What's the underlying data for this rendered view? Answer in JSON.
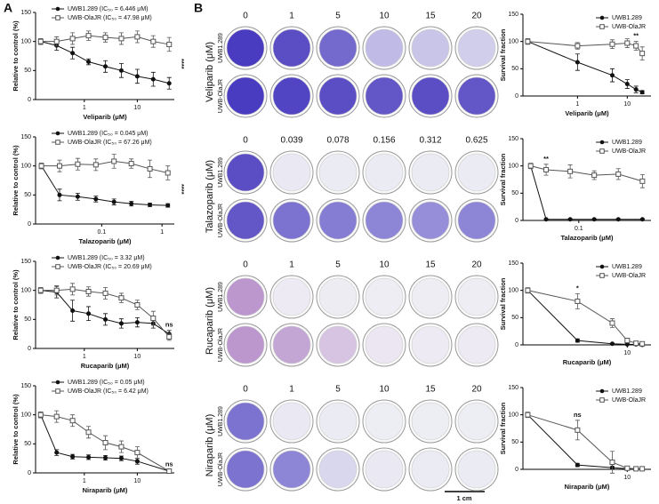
{
  "panel_labels": [
    "A",
    "B"
  ],
  "scale_bar": "1 cm",
  "plates": [
    {
      "drug_label": "Veliparib (μM)",
      "doses": [
        "0",
        "1",
        "5",
        "10",
        "15",
        "20"
      ],
      "rows": [
        "UWB1.289",
        "UWB-OlaJR"
      ]
    },
    {
      "drug_label": "Talazoparib (μM)",
      "doses": [
        "0",
        "0.039",
        "0.078",
        "0.156",
        "0.312",
        "0.625"
      ],
      "rows": [
        "UWB1.289",
        "UWB-OlaJR"
      ]
    },
    {
      "drug_label": "Rucaparib (μM)",
      "doses": [
        "0",
        "1",
        "5",
        "10",
        "15",
        "20"
      ],
      "rows": [
        "UWB1.289",
        "UWB-OlaJR"
      ]
    },
    {
      "drug_label": "Niraparib (μM)",
      "doses": [
        "0",
        "1",
        "5",
        "10",
        "15",
        "20"
      ],
      "rows": [
        "UWB1.289",
        "UWB-OlaJR"
      ]
    }
  ],
  "chart_data": [
    {
      "type": "line",
      "xlabel": "Veliparib (μM)",
      "ylabel": "Relative to control (%)",
      "xlog": true,
      "xlim": [
        0.12,
        50
      ],
      "xticks": [
        1,
        10
      ],
      "ylim": [
        0,
        150
      ],
      "yticks": [
        0,
        50,
        100,
        150
      ],
      "annotation": "****",
      "x": [
        0.15,
        0.3,
        0.6,
        1.2,
        2.5,
        5,
        10,
        20,
        40
      ],
      "series": [
        {
          "name": "UWB1.289 (IC₅₀ = 6.446 μM)",
          "color": "#111111",
          "marker": "circle",
          "values": [
            100,
            93,
            80,
            65,
            57,
            50,
            40,
            35,
            28
          ],
          "errors": [
            5,
            8,
            10,
            5,
            10,
            12,
            12,
            12,
            10
          ]
        },
        {
          "name": "UWB-OlaJR (IC₅₀ = 47.98 μM)",
          "color": "#555555",
          "marker": "square",
          "values": [
            100,
            100,
            105,
            110,
            107,
            105,
            108,
            100,
            95
          ],
          "errors": [
            5,
            8,
            10,
            8,
            8,
            10,
            10,
            10,
            12
          ]
        }
      ]
    },
    {
      "type": "line",
      "xlabel": "Talazoparib (μM)",
      "ylabel": "Relative to control (%)",
      "xlog": true,
      "xlim": [
        0.008,
        1.6
      ],
      "xticks": [
        0.1,
        1
      ],
      "ylim": [
        0,
        150
      ],
      "yticks": [
        0,
        50,
        100,
        150
      ],
      "annotation": "****",
      "x": [
        0.01,
        0.02,
        0.04,
        0.08,
        0.16,
        0.31,
        0.63,
        1.25
      ],
      "series": [
        {
          "name": "UWB1.289 (IC₅₀ = 0.045 μM)",
          "color": "#111111",
          "marker": "circle",
          "values": [
            100,
            50,
            47,
            43,
            38,
            35,
            33,
            32
          ],
          "errors": [
            3,
            10,
            6,
            5,
            5,
            4,
            3,
            3
          ]
        },
        {
          "name": "UWB-OlaJR (IC₅₀ = 67.26 μM)",
          "color": "#555555",
          "marker": "square",
          "values": [
            100,
            100,
            103,
            102,
            108,
            104,
            95,
            88
          ],
          "errors": [
            5,
            10,
            10,
            10,
            12,
            8,
            15,
            12
          ]
        }
      ]
    },
    {
      "type": "line",
      "xlabel": "Rucaparib  (μM)",
      "ylabel": "Relative to control (%)",
      "xlog": true,
      "xlim": [
        0.12,
        50
      ],
      "xticks": [
        1,
        10
      ],
      "ylim": [
        0,
        150
      ],
      "yticks": [
        0,
        50,
        100,
        150
      ],
      "annotation": "ns",
      "x": [
        0.15,
        0.3,
        0.6,
        1.2,
        2.5,
        5,
        10,
        20,
        40
      ],
      "series": [
        {
          "name": "UWB1.289 (IC₅₀ = 3.32 μM)",
          "color": "#111111",
          "marker": "circle",
          "values": [
            100,
            97,
            65,
            60,
            50,
            43,
            45,
            43,
            25
          ],
          "errors": [
            5,
            10,
            18,
            12,
            10,
            8,
            8,
            8,
            6
          ]
        },
        {
          "name": "UWB-OlaJR (IC₅₀ = 20.69 μM)",
          "color": "#555555",
          "marker": "square",
          "values": [
            100,
            100,
            102,
            98,
            95,
            87,
            75,
            52,
            20
          ],
          "errors": [
            5,
            8,
            10,
            8,
            10,
            8,
            8,
            12,
            6
          ]
        }
      ]
    },
    {
      "type": "line",
      "xlabel": "Niraparib (μM)",
      "ylabel": "Relative to control (%)",
      "xlog": true,
      "xlim": [
        0.12,
        50
      ],
      "xticks": [
        1,
        10
      ],
      "ylim": [
        0,
        150
      ],
      "yticks": [
        0,
        50,
        100,
        150
      ],
      "annotation": "ns",
      "x": [
        0.15,
        0.3,
        0.6,
        1.2,
        2.5,
        5,
        10,
        40
      ],
      "series": [
        {
          "name": "UWB1.289 (IC₅₀ = 0.05 μM)",
          "color": "#111111",
          "marker": "circle",
          "values": [
            100,
            35,
            28,
            27,
            26,
            25,
            20,
            3
          ],
          "errors": [
            5,
            5,
            4,
            4,
            4,
            4,
            5,
            2
          ]
        },
        {
          "name": "UWB-OlaJR (IC₅₀ = 6.42 μM)",
          "color": "#555555",
          "marker": "square",
          "values": [
            100,
            97,
            90,
            70,
            52,
            45,
            35,
            3
          ],
          "errors": [
            5,
            10,
            10,
            10,
            12,
            10,
            10,
            2
          ]
        }
      ]
    },
    {
      "type": "line",
      "xlabel": "Veliparib (μM)",
      "ylabel": "Survival fraction",
      "xlog": true,
      "xlim": [
        0.08,
        30
      ],
      "xticks": [
        1,
        10
      ],
      "ylim": [
        0,
        150
      ],
      "yticks": [
        0,
        50,
        100,
        150
      ],
      "annotation": "**",
      "x": [
        0.1,
        1,
        5,
        10,
        15,
        20
      ],
      "series": [
        {
          "name": "UWB1.289",
          "color": "#111111",
          "marker": "circle",
          "values": [
            100,
            62,
            38,
            22,
            12,
            7
          ],
          "errors": [
            5,
            15,
            12,
            8,
            6,
            3
          ]
        },
        {
          "name": "UWB-OlaJR",
          "color": "#555555",
          "marker": "square",
          "values": [
            100,
            92,
            95,
            97,
            92,
            78
          ],
          "errors": [
            5,
            6,
            8,
            8,
            8,
            12
          ]
        }
      ]
    },
    {
      "type": "line",
      "xlabel": "Talazoparib (μM)",
      "ylabel": "Survival fraction",
      "xlog": true,
      "xlim": [
        0.02,
        0.8
      ],
      "xticks": [
        0.1
      ],
      "ylim": [
        0,
        150
      ],
      "yticks": [
        0,
        50,
        100,
        150
      ],
      "annotation": "**",
      "x": [
        0.025,
        0.039,
        0.078,
        0.156,
        0.312,
        0.625
      ],
      "series": [
        {
          "name": "UWB1.289",
          "color": "#111111",
          "marker": "circle",
          "values": [
            100,
            2,
            2,
            2,
            2,
            2
          ],
          "errors": [
            3,
            1,
            1,
            1,
            1,
            1
          ]
        },
        {
          "name": "UWB-OlaJR",
          "color": "#555555",
          "marker": "square",
          "values": [
            100,
            93,
            90,
            83,
            85,
            72
          ],
          "errors": [
            5,
            10,
            12,
            8,
            10,
            12
          ]
        }
      ]
    },
    {
      "type": "line",
      "xlabel": "Rucaparib  (μM)",
      "ylabel": "Survival fraction",
      "xlog": true,
      "xlim": [
        0.08,
        30
      ],
      "xticks": [
        10
      ],
      "ylim": [
        0,
        150
      ],
      "yticks": [
        0,
        50,
        100,
        150
      ],
      "annotation": "*",
      "x": [
        0.1,
        1,
        5,
        10,
        15,
        20
      ],
      "series": [
        {
          "name": "UWB1.289",
          "color": "#111111",
          "marker": "circle",
          "values": [
            100,
            8,
            2,
            1,
            1,
            0
          ],
          "errors": [
            3,
            3,
            1,
            1,
            1,
            1
          ]
        },
        {
          "name": "UWB-OlaJR",
          "color": "#555555",
          "marker": "square",
          "values": [
            100,
            80,
            40,
            8,
            3,
            2
          ],
          "errors": [
            5,
            14,
            8,
            4,
            2,
            1
          ]
        }
      ]
    },
    {
      "type": "line",
      "xlabel": "Niraparib (μM)",
      "ylabel": "Survival fraction",
      "xlog": true,
      "xlim": [
        0.08,
        30
      ],
      "xticks": [
        10
      ],
      "ylim": [
        0,
        150
      ],
      "yticks": [
        0,
        50,
        100,
        150
      ],
      "annotation": "ns",
      "x": [
        0.1,
        1,
        5,
        10,
        15,
        20
      ],
      "series": [
        {
          "name": "UWB1.289",
          "color": "#111111",
          "marker": "circle",
          "values": [
            100,
            8,
            3,
            1,
            1,
            1
          ],
          "errors": [
            3,
            3,
            2,
            1,
            1,
            1
          ]
        },
        {
          "name": "UWB-OlaJR",
          "color": "#555555",
          "marker": "square",
          "values": [
            100,
            72,
            13,
            2,
            1,
            1
          ],
          "errors": [
            5,
            18,
            20,
            2,
            1,
            1
          ]
        }
      ]
    }
  ]
}
